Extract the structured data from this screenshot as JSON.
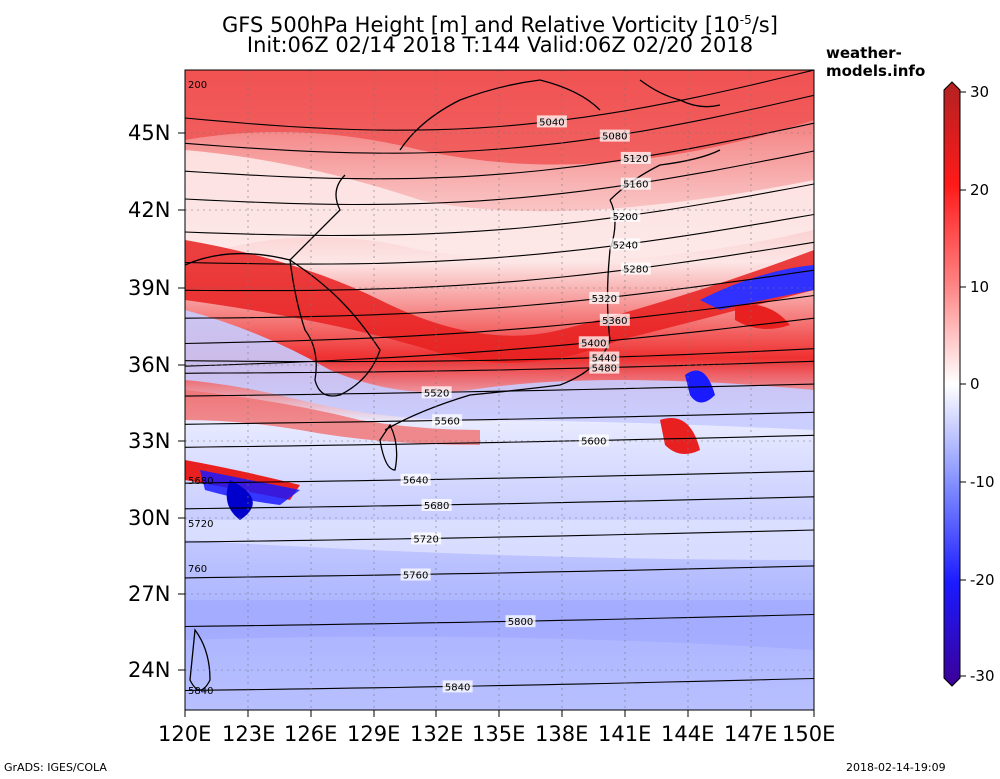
{
  "title_line1": "GFS 500hPa Height [m] and Relative Vorticity [10",
  "title_sup": "-5",
  "title_line1_end": "/s]",
  "title_line2": "Init:06Z 02/14 2018 T:144 Valid:06Z 02/20 2018",
  "brand": "weather-models.info",
  "footer_left": "GrADS: IGES/COLA",
  "footer_right": "2018-02-14-19:09",
  "lon_labels": [
    "120E",
    "123E",
    "126E",
    "129E",
    "132E",
    "135E",
    "138E",
    "141E",
    "144E",
    "147E",
    "150E"
  ],
  "lat_labels": [
    "45N",
    "42N",
    "39N",
    "36N",
    "33N",
    "30N",
    "27N",
    "24N"
  ],
  "colorbar": {
    "ticks": [
      "30",
      "20",
      "10",
      "0",
      "-10",
      "-20",
      "-30"
    ],
    "max_color": "#b22222",
    "min_color": "#3c0096"
  },
  "contours": [
    {
      "label": "5040",
      "lat": 46.7
    },
    {
      "label": "5080",
      "lat": 45.7
    },
    {
      "label": "5120",
      "lat": 44.6
    },
    {
      "label": "5160",
      "lat": 43.5
    },
    {
      "label": "5200",
      "lat": 42.2
    },
    {
      "label": "5240",
      "lat": 41.0
    },
    {
      "label": "5280",
      "lat": 39.9
    },
    {
      "label": "5320",
      "lat": 38.8
    },
    {
      "label": "5360",
      "lat": 37.8
    },
    {
      "label": "5400",
      "lat": 36.9
    },
    {
      "label": "5440",
      "lat": 36.4
    },
    {
      "label": "5480",
      "lat": 35.9
    },
    {
      "label": "5520",
      "lat": 35.0
    },
    {
      "label": "5560",
      "lat": 33.9
    },
    {
      "label": "5600",
      "lat": 33.0
    },
    {
      "label": "5640",
      "lat": 31.6
    },
    {
      "label": "5680",
      "lat": 30.6
    },
    {
      "label": "5720",
      "lat": 29.3
    },
    {
      "label": "5760",
      "lat": 27.9
    },
    {
      "label": "5800",
      "lat": 26.0
    },
    {
      "label": "5840",
      "lat": 23.5
    }
  ],
  "contour_edge_labels": [
    "200",
    "5680",
    "5720",
    "760",
    "5840"
  ]
}
